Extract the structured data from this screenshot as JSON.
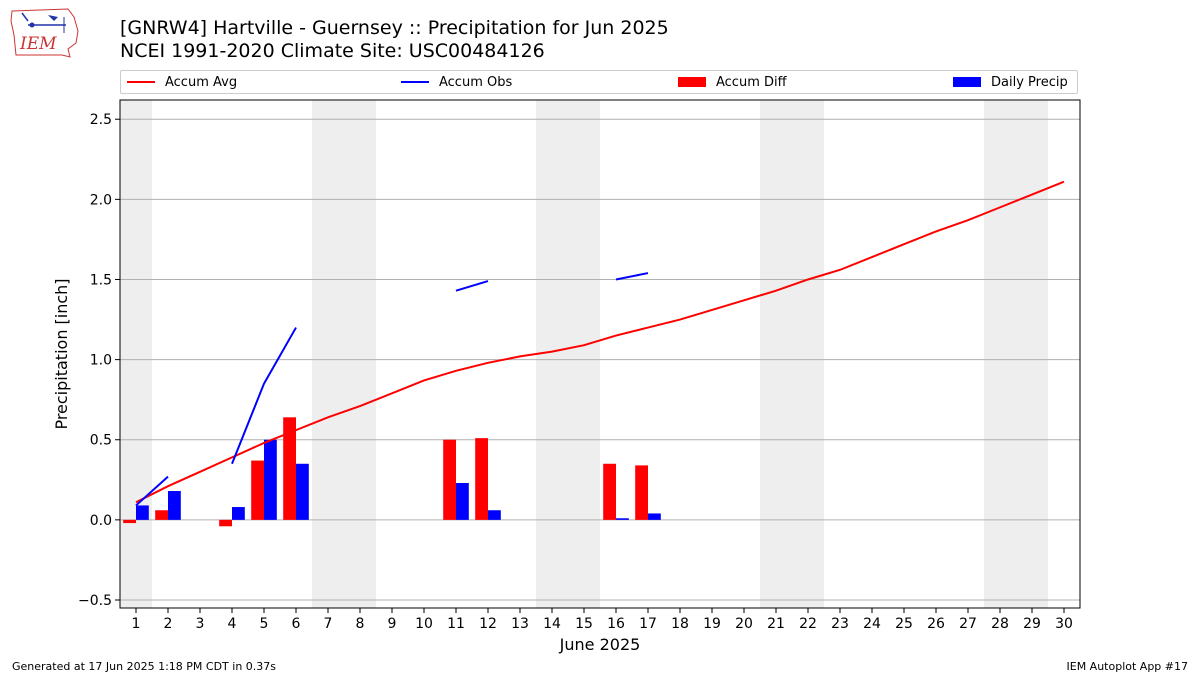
{
  "header": {
    "logo_text": "IEM",
    "title_line1": "[GNRW4] Hartville - Guernsey :: Precipitation for Jun 2025",
    "title_line2": "NCEI 1991-2020 Climate Site: USC00484126"
  },
  "legend": [
    {
      "label": "Accum Avg",
      "kind": "line",
      "color": "#ff0000"
    },
    {
      "label": "Accum Obs",
      "kind": "line",
      "color": "#0000ff"
    },
    {
      "label": "Accum Diff",
      "kind": "box",
      "color": "#ff0000"
    },
    {
      "label": "Daily Precip",
      "kind": "box",
      "color": "#0000ff"
    }
  ],
  "footer": {
    "left": "Generated at 17 Jun 2025 1:18 PM CDT in 0.37s",
    "right": "IEM Autoplot App #17"
  },
  "chart_data": {
    "type": "bar",
    "title": "[GNRW4] Hartville - Guernsey :: Precipitation for Jun 2025",
    "xlabel": "June 2025",
    "ylabel": "Precipitation [inch]",
    "xlim": [
      0.5,
      30.5
    ],
    "ylim": [
      -0.55,
      2.62
    ],
    "yticks": [
      -0.5,
      0.0,
      0.5,
      1.0,
      1.5,
      2.0,
      2.5
    ],
    "ytick_labels": [
      "−0.5",
      "0.0",
      "0.5",
      "1.0",
      "1.5",
      "2.0",
      "2.5"
    ],
    "days": [
      1,
      2,
      3,
      4,
      5,
      6,
      7,
      8,
      9,
      10,
      11,
      12,
      13,
      14,
      15,
      16,
      17,
      18,
      19,
      20,
      21,
      22,
      23,
      24,
      25,
      26,
      27,
      28,
      29,
      30
    ],
    "grid": "horizontal",
    "weekend_shading_days": [
      1,
      7,
      8,
      14,
      15,
      21,
      22,
      28,
      29
    ],
    "weekend_color": "#eeeeee",
    "series": [
      {
        "name": "Accum Avg",
        "kind": "line",
        "color": "#ff0000",
        "values": [
          0.11,
          0.21,
          0.3,
          0.39,
          0.48,
          0.56,
          0.64,
          0.71,
          0.79,
          0.87,
          0.93,
          0.98,
          1.02,
          1.05,
          1.09,
          1.15,
          1.2,
          1.25,
          1.31,
          1.37,
          1.43,
          1.5,
          1.56,
          1.64,
          1.72,
          1.8,
          1.87,
          1.95,
          2.03,
          2.11
        ]
      },
      {
        "name": "Accum Obs",
        "kind": "line",
        "color": "#0000ff",
        "segments": [
          {
            "days": [
              1,
              2
            ],
            "values": [
              0.09,
              0.27
            ]
          },
          {
            "days": [
              4,
              5,
              6
            ],
            "values": [
              0.35,
              0.85,
              1.2
            ]
          },
          {
            "days": [
              11,
              12
            ],
            "values": [
              1.43,
              1.49
            ]
          },
          {
            "days": [
              16,
              17
            ],
            "values": [
              1.5,
              1.54
            ]
          }
        ]
      },
      {
        "name": "Accum Diff",
        "kind": "bar",
        "color": "#ff0000",
        "days": [
          1,
          2,
          4,
          5,
          6,
          11,
          12,
          16,
          17
        ],
        "values": [
          -0.02,
          0.06,
          -0.04,
          0.37,
          0.64,
          0.5,
          0.51,
          0.35,
          0.34
        ]
      },
      {
        "name": "Daily Precip",
        "kind": "bar",
        "color": "#0000ff",
        "days": [
          1,
          2,
          4,
          5,
          6,
          11,
          12,
          16,
          17
        ],
        "values": [
          0.09,
          0.18,
          0.08,
          0.5,
          0.35,
          0.23,
          0.06,
          0.01,
          0.04
        ]
      }
    ]
  }
}
